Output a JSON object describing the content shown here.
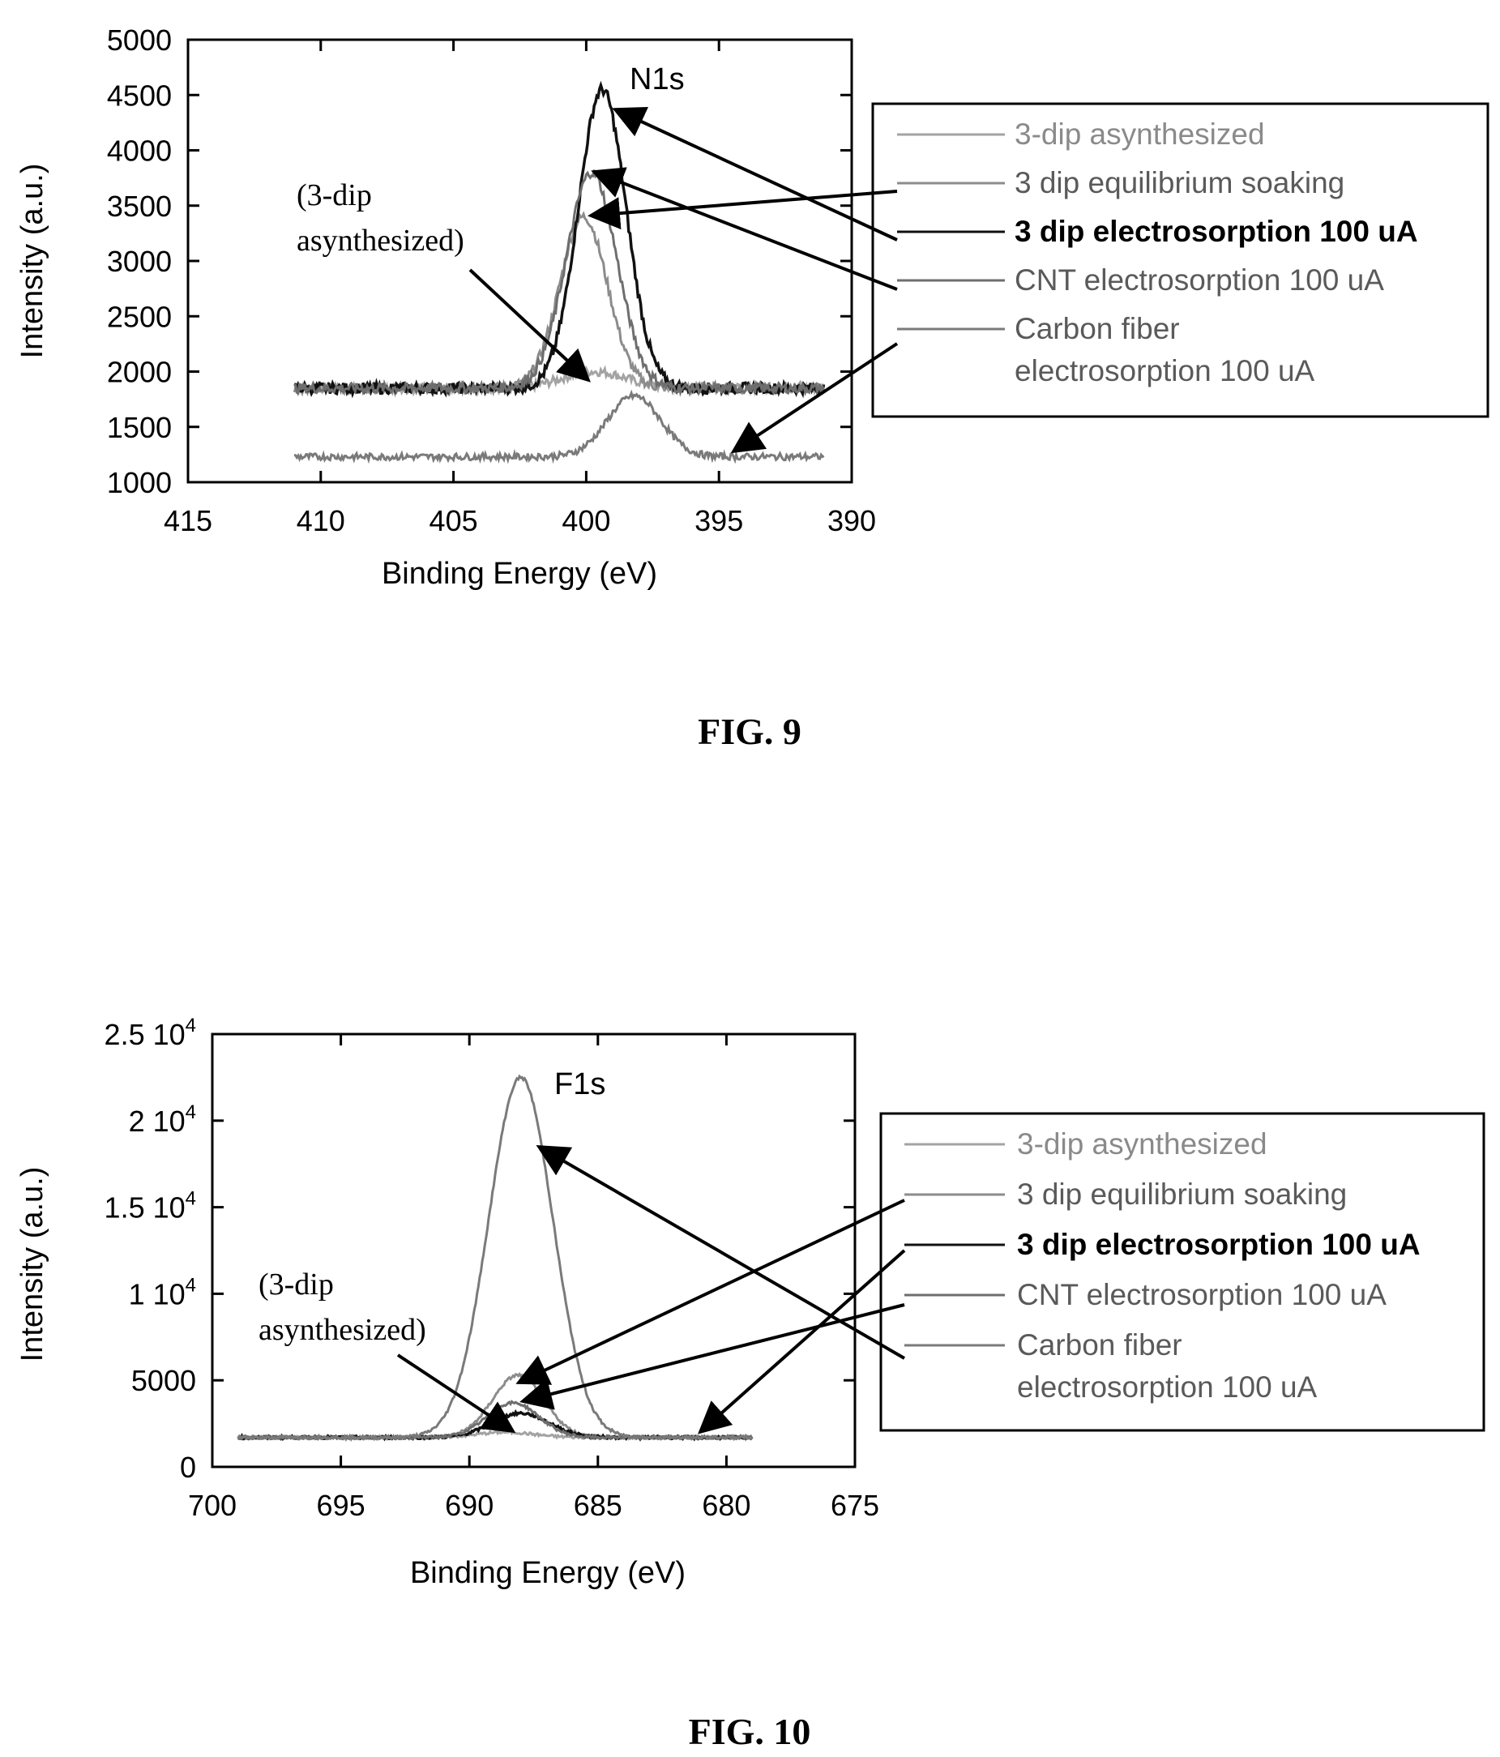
{
  "figures": [
    {
      "caption": "FIG. 9",
      "annotation": [
        "(3-dip",
        "asynthesized)"
      ],
      "colors": {
        "light": "#8a8a8a",
        "mid": "#6a6a6a",
        "dark": "#555555",
        "black": "#000000"
      },
      "chart_data": {
        "type": "line",
        "title": "",
        "peak_label": "N1s",
        "xlabel": "Binding Energy (eV)",
        "ylabel": "Intensity (a.u.)",
        "xlim": [
          415,
          390
        ],
        "ylim": [
          1000,
          5000
        ],
        "x_ticks": [
          "415",
          "410",
          "405",
          "400",
          "395",
          "390"
        ],
        "y_ticks": [
          "1000",
          "1500",
          "2000",
          "2500",
          "3000",
          "3500",
          "4000",
          "4500",
          "5000"
        ],
        "legend_position": "right",
        "series": [
          {
            "name": "3-dip asynthesized",
            "color": "#a3a3a3",
            "baseline": 1850,
            "center": 399.7,
            "amp": 150,
            "width": 1.2,
            "noise": 40
          },
          {
            "name": "3 dip equilibrium soaking",
            "color": "#8c8c8c",
            "baseline": 1850,
            "center": 400.1,
            "amp": 1550,
            "width": 0.9,
            "noise": 45
          },
          {
            "name": "3 dip electrosorption 100 uA",
            "color": "#111111",
            "baseline": 1850,
            "center": 399.4,
            "amp": 2700,
            "width": 0.9,
            "noise": 50
          },
          {
            "name": "CNT electrosorption 100 uA",
            "color": "#6e6e6e",
            "baseline": 1850,
            "center": 399.8,
            "amp": 1950,
            "width": 0.95,
            "noise": 45
          },
          {
            "name": "Carbon fiber electrosorption 100 uA",
            "color": "#7a7a7a",
            "baseline": 1230,
            "center": 398.2,
            "amp": 550,
            "width": 1.0,
            "noise": 30
          }
        ]
      }
    },
    {
      "caption": "FIG. 10",
      "annotation": [
        "(3-dip",
        "asynthesized)"
      ],
      "chart_data": {
        "type": "line",
        "title": "",
        "peak_label": "F1s",
        "xlabel": "Binding Energy (eV)",
        "ylabel": "Intensity (a.u.)",
        "xlim": [
          700,
          675
        ],
        "ylim": [
          0,
          25000
        ],
        "x_ticks": [
          "700",
          "695",
          "690",
          "685",
          "680",
          "675"
        ],
        "y_ticks": [
          {
            "v": 0,
            "t": "0"
          },
          {
            "v": 5000,
            "t": "5000"
          },
          {
            "v": 10000,
            "t": "1 10",
            "sup": "4"
          },
          {
            "v": 15000,
            "t": "1.5 10",
            "sup": "4"
          },
          {
            "v": 20000,
            "t": "2 10",
            "sup": "4"
          },
          {
            "v": 25000,
            "t": "2.5 10",
            "sup": "4"
          }
        ],
        "legend_position": "right",
        "series": [
          {
            "name": "3-dip asynthesized",
            "color": "#a3a3a3",
            "baseline": 1700,
            "center": 688.6,
            "amp": 300,
            "width": 1.1,
            "noise": 80
          },
          {
            "name": "3 dip equilibrium soaking",
            "color": "#8c8c8c",
            "baseline": 1700,
            "center": 688.1,
            "amp": 3600,
            "width": 1.0,
            "noise": 90
          },
          {
            "name": "3 dip electrosorption 100 uA",
            "color": "#111111",
            "baseline": 1700,
            "center": 688.0,
            "amp": 1400,
            "width": 1.1,
            "noise": 80
          },
          {
            "name": "CNT electrosorption 100 uA",
            "color": "#6e6e6e",
            "baseline": 1700,
            "center": 688.3,
            "amp": 2000,
            "width": 1.0,
            "noise": 80
          },
          {
            "name": "Carbon fiber electrosorption 100 uA",
            "color": "#7a7a7a",
            "baseline": 1700,
            "center": 688.0,
            "amp": 20800,
            "width": 1.25,
            "noise": 90
          }
        ]
      }
    }
  ]
}
